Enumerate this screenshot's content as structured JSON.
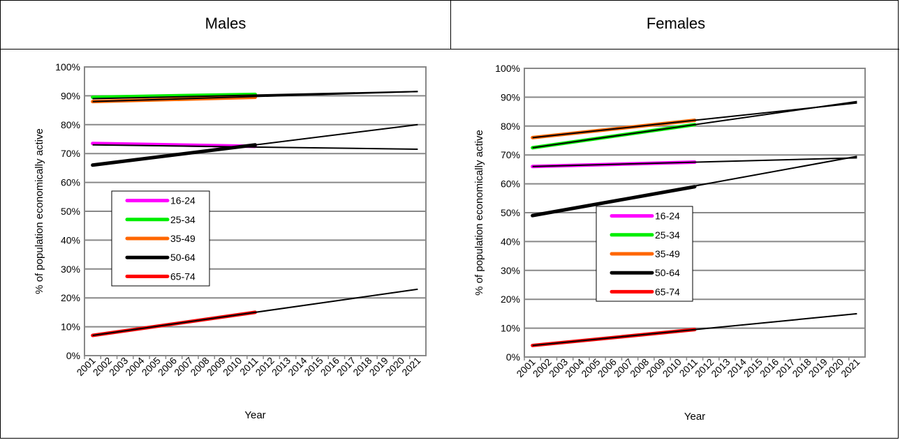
{
  "panels": {
    "left_title": "Males",
    "right_title": "Females"
  },
  "colors": {
    "16-24": "#ff00ff",
    "25-34": "#00ee00",
    "35-49": "#ff6600",
    "50-64": "#000000",
    "65-74": "#ff0000",
    "projection": "#000000",
    "grid": "#888888"
  },
  "chart_data": [
    {
      "type": "line",
      "title": "Males",
      "xlabel": "Year",
      "ylabel": "% of population economically active",
      "categories": [
        "2001",
        "2002",
        "2003",
        "2004",
        "2005",
        "2006",
        "2007",
        "2008",
        "2009",
        "2010",
        "2011",
        "2012",
        "2013",
        "2014",
        "2015",
        "2016",
        "2017",
        "2018",
        "2019",
        "2020",
        "2021"
      ],
      "ylim": [
        0,
        100
      ],
      "yticks": [
        "0%",
        "10%",
        "20%",
        "30%",
        "40%",
        "50%",
        "60%",
        "70%",
        "80%",
        "90%",
        "100%"
      ],
      "grid": true,
      "legend_position": "left-middle",
      "series": [
        {
          "name": "16-24",
          "color_key": "16-24",
          "x": [
            "2001",
            "2011"
          ],
          "values": [
            73.5,
            72.5
          ]
        },
        {
          "name": "25-34",
          "color_key": "25-34",
          "x": [
            "2001",
            "2011"
          ],
          "values": [
            89.5,
            90.5
          ]
        },
        {
          "name": "35-49",
          "color_key": "35-49",
          "x": [
            "2001",
            "2011"
          ],
          "values": [
            88,
            89.5
          ]
        },
        {
          "name": "50-64",
          "color_key": "50-64",
          "x": [
            "2001",
            "2011"
          ],
          "values": [
            66,
            73
          ]
        },
        {
          "name": "65-74",
          "color_key": "65-74",
          "x": [
            "2001",
            "2011"
          ],
          "values": [
            7,
            15
          ]
        }
      ],
      "projections": [
        {
          "from": [
            "2001",
            73
          ],
          "to": [
            "2021",
            71.5
          ]
        },
        {
          "from": [
            "2001",
            89
          ],
          "to": [
            "2021",
            91.5
          ]
        },
        {
          "from": [
            "2001",
            88
          ],
          "to": [
            "2021",
            91.5
          ]
        },
        {
          "from": [
            "2001",
            66
          ],
          "to": [
            "2021",
            80
          ]
        },
        {
          "from": [
            "2001",
            7
          ],
          "to": [
            "2021",
            23
          ]
        }
      ]
    },
    {
      "type": "line",
      "title": "Females",
      "xlabel": "Year",
      "ylabel": "% of population economically active",
      "categories": [
        "2001",
        "2002",
        "2003",
        "2004",
        "2005",
        "2006",
        "2007",
        "2008",
        "2009",
        "2010",
        "2011",
        "2012",
        "2013",
        "2014",
        "2015",
        "2016",
        "2017",
        "2018",
        "2019",
        "2020",
        "2021"
      ],
      "ylim": [
        0,
        100
      ],
      "yticks": [
        "0%",
        "10%",
        "20%",
        "30%",
        "40%",
        "50%",
        "60%",
        "70%",
        "80%",
        "90%",
        "100%"
      ],
      "grid": true,
      "legend_position": "center",
      "series": [
        {
          "name": "16-24",
          "color_key": "16-24",
          "x": [
            "2001",
            "2011"
          ],
          "values": [
            66,
            67.5
          ]
        },
        {
          "name": "25-34",
          "color_key": "25-34",
          "x": [
            "2001",
            "2011"
          ],
          "values": [
            72.5,
            80.5
          ]
        },
        {
          "name": "35-49",
          "color_key": "35-49",
          "x": [
            "2001",
            "2011"
          ],
          "values": [
            76,
            82
          ]
        },
        {
          "name": "50-64",
          "color_key": "50-64",
          "x": [
            "2001",
            "2011"
          ],
          "values": [
            49,
            59
          ]
        },
        {
          "name": "65-74",
          "color_key": "65-74",
          "x": [
            "2001",
            "2011"
          ],
          "values": [
            4,
            9.5
          ]
        }
      ],
      "projections": [
        {
          "from": [
            "2001",
            66
          ],
          "to": [
            "2021",
            69
          ]
        },
        {
          "from": [
            "2001",
            72.5
          ],
          "to": [
            "2021",
            88.5
          ]
        },
        {
          "from": [
            "2001",
            76
          ],
          "to": [
            "2021",
            88
          ]
        },
        {
          "from": [
            "2001",
            49
          ],
          "to": [
            "2021",
            69.5
          ]
        },
        {
          "from": [
            "2001",
            4
          ],
          "to": [
            "2021",
            15
          ]
        }
      ]
    }
  ]
}
